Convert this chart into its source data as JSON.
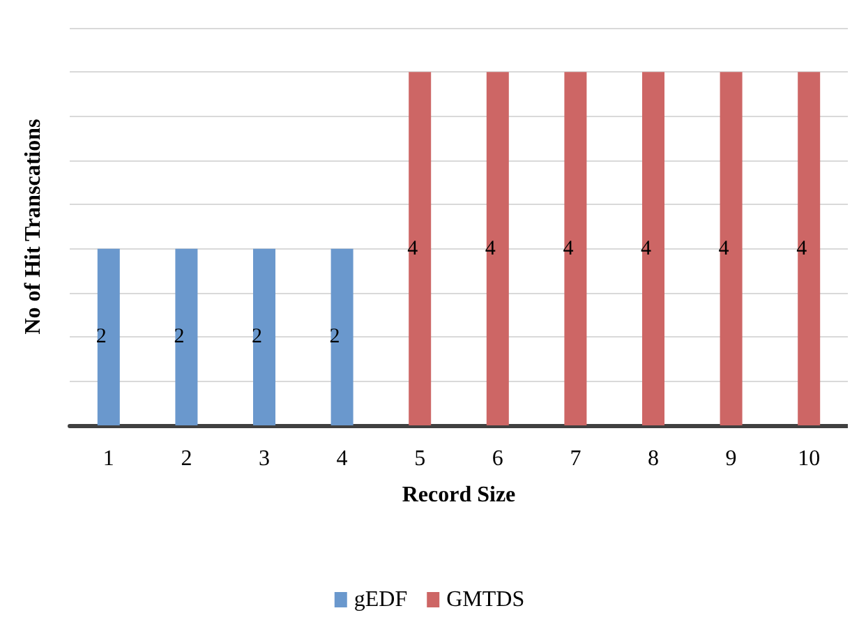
{
  "chart_data": {
    "type": "bar",
    "xlabel": "Record Size",
    "ylabel": "No of Hit Transcations",
    "categories": [
      "1",
      "2",
      "3",
      "4",
      "5",
      "6",
      "7",
      "8",
      "9",
      "10"
    ],
    "series": [
      {
        "name": "gEDF",
        "color": "#6a98cd",
        "values": [
          2,
          2,
          2,
          2,
          null,
          null,
          null,
          null,
          null,
          null
        ]
      },
      {
        "name": "GMTDS",
        "color": "#cd6665",
        "values": [
          null,
          null,
          null,
          null,
          4,
          4,
          4,
          4,
          4,
          4
        ]
      }
    ],
    "ylim": [
      0,
      4.5
    ],
    "yticks": [
      {
        "value": 0,
        "label": null
      },
      {
        "value": 0.5,
        "label": null
      },
      {
        "value": 1,
        "label": null
      },
      {
        "value": 1.5,
        "label": null
      },
      {
        "value": 2,
        "label": null
      },
      {
        "value": 2.5,
        "label": null
      },
      {
        "value": 3,
        "label": null
      },
      {
        "value": 3.5,
        "label": null
      },
      {
        "value": 4,
        "label": null
      },
      {
        "value": 4.5,
        "label": null
      }
    ],
    "grid": "y",
    "legend": "bottom",
    "data_labels": true,
    "tick_labels": "x"
  }
}
